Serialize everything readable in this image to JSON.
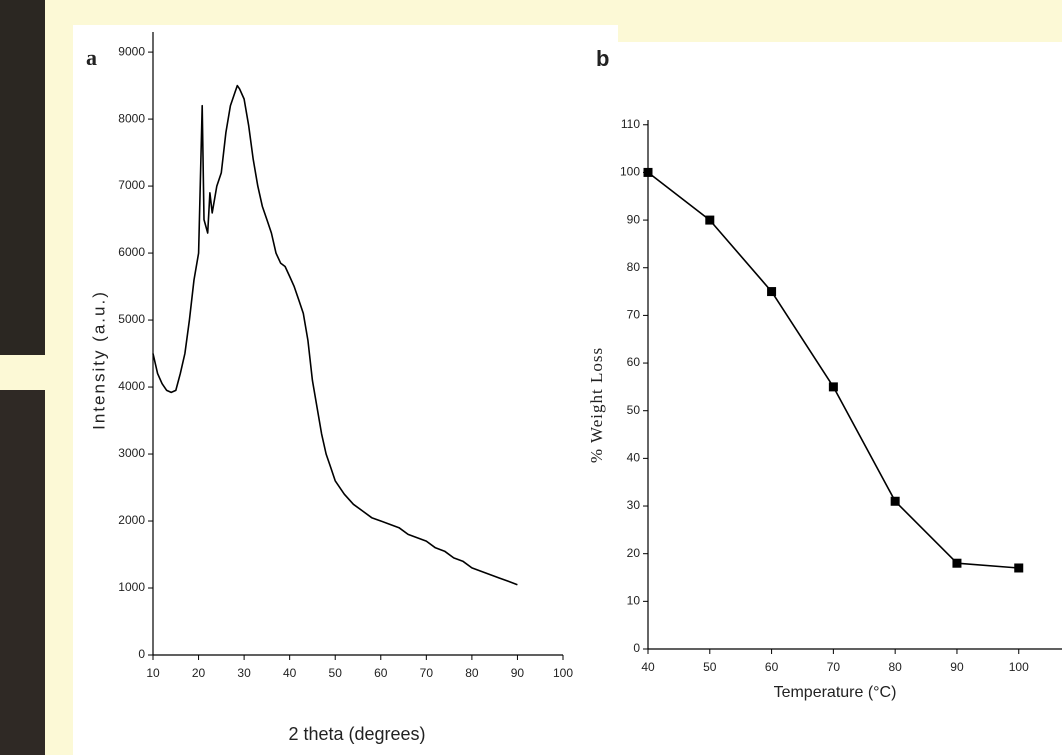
{
  "chart_data": [
    {
      "type": "line",
      "panel_label": "a",
      "x_label": "2 theta (degrees)",
      "y_label": "Intensity (a.u.)",
      "color": "#000000",
      "x": [
        10,
        11,
        12,
        13,
        14,
        15,
        16,
        17,
        18,
        19,
        20,
        20.8,
        21.2,
        22,
        22.5,
        23,
        24,
        25,
        26,
        27,
        28,
        28.5,
        29,
        30,
        31,
        32,
        33,
        34,
        35,
        36,
        37,
        38,
        39,
        40,
        41,
        42,
        43,
        44,
        45,
        46,
        47,
        48,
        49,
        50,
        52,
        54,
        56,
        58,
        60,
        62,
        64,
        66,
        68,
        70,
        72,
        74,
        76,
        78,
        80,
        82,
        84,
        86,
        88,
        90
      ],
      "values": [
        4500,
        4200,
        4050,
        3950,
        3920,
        3950,
        4200,
        4500,
        5000,
        5600,
        6000,
        8200,
        6500,
        6300,
        6900,
        6600,
        7000,
        7200,
        7800,
        8200,
        8400,
        8500,
        8450,
        8300,
        7900,
        7400,
        7000,
        6700,
        6500,
        6300,
        6000,
        5850,
        5800,
        5650,
        5500,
        5300,
        5100,
        4700,
        4100,
        3700,
        3300,
        3000,
        2800,
        2600,
        2400,
        2250,
        2150,
        2050,
        2000,
        1950,
        1900,
        1800,
        1750,
        1700,
        1600,
        1550,
        1450,
        1400,
        1300,
        1250,
        1200,
        1150,
        1100,
        1050
      ],
      "xlim": [
        10,
        100
      ],
      "ylim": [
        0,
        9300
      ],
      "xticks": [
        10,
        20,
        30,
        40,
        50,
        60,
        70,
        80,
        90,
        100
      ],
      "yticks": [
        0,
        1000,
        2000,
        3000,
        4000,
        5000,
        6000,
        7000,
        8000,
        9000
      ]
    },
    {
      "type": "line",
      "panel_label": "b",
      "x_label": "Temperature (°C)",
      "y_label": "% Weight Loss",
      "color": "#000000",
      "marker": "square",
      "x": [
        40,
        50,
        60,
        70,
        80,
        90,
        100
      ],
      "values": [
        100,
        90,
        75,
        55,
        31,
        18,
        17
      ],
      "xlim": [
        40,
        107
      ],
      "ylim": [
        0,
        111
      ],
      "xticks": [
        40,
        50,
        60,
        70,
        80,
        90,
        100
      ],
      "yticks": [
        0,
        10,
        20,
        30,
        40,
        50,
        60,
        70,
        80,
        90,
        100,
        110
      ]
    }
  ]
}
